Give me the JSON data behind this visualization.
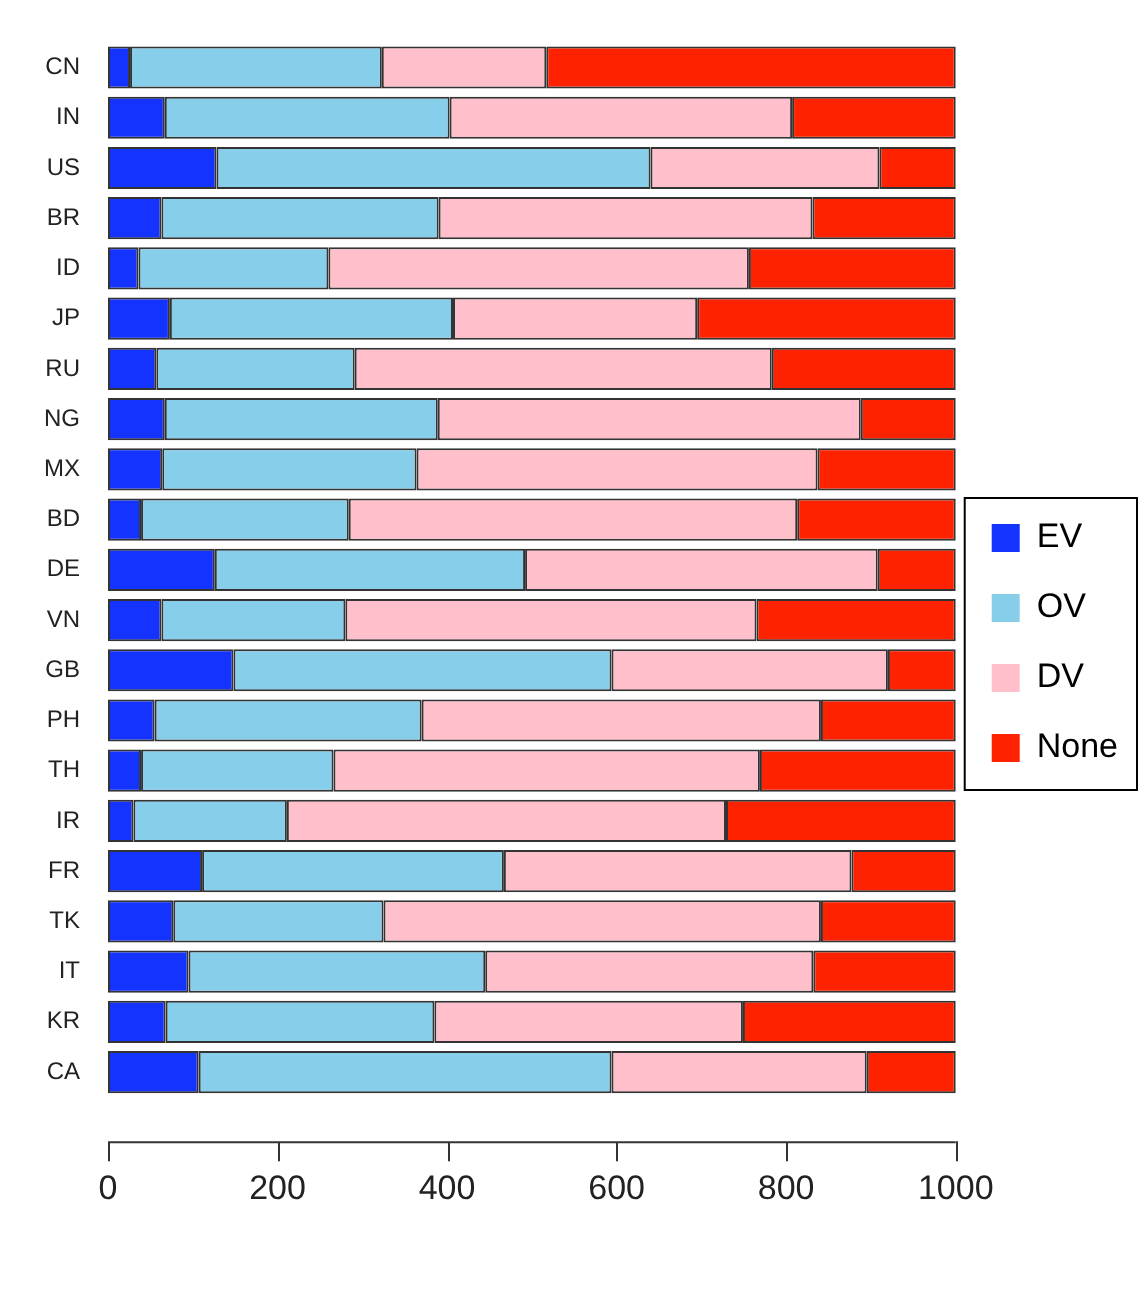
{
  "chart_data": {
    "type": "bar",
    "orientation": "horizontal",
    "stacked": true,
    "categories": [
      "CN",
      "IN",
      "US",
      "BR",
      "ID",
      "JP",
      "RU",
      "NG",
      "MX",
      "BD",
      "DE",
      "VN",
      "GB",
      "PH",
      "TH",
      "IR",
      "FR",
      "TK",
      "IT",
      "KR",
      "CA"
    ],
    "series": [
      {
        "name": "EV",
        "color": "#1433ff",
        "values": [
          26,
          67,
          128,
          63,
          36,
          73,
          57,
          67,
          64,
          39,
          126,
          63,
          148,
          55,
          39,
          30,
          111,
          77,
          95,
          68,
          107
        ]
      },
      {
        "name": "OV",
        "color": "#87ceeb",
        "values": [
          297,
          336,
          512,
          327,
          224,
          334,
          234,
          322,
          300,
          245,
          366,
          217,
          446,
          315,
          227,
          181,
          356,
          248,
          350,
          317,
          487
        ]
      },
      {
        "name": "DV",
        "color": "#ffc0cb",
        "values": [
          194,
          404,
          270,
          441,
          496,
          288,
          492,
          499,
          473,
          529,
          416,
          485,
          326,
          471,
          503,
          518,
          410,
          516,
          387,
          364,
          301
        ]
      },
      {
        "name": "None",
        "color": "#ff2200",
        "values": [
          483,
          193,
          90,
          169,
          244,
          305,
          217,
          112,
          163,
          187,
          92,
          235,
          80,
          159,
          231,
          271,
          123,
          159,
          168,
          251,
          105
        ]
      }
    ],
    "xlim": [
      0,
      1000
    ],
    "xticks": [
      0,
      200,
      400,
      600,
      800,
      1000
    ],
    "grid": false,
    "legend": "right"
  }
}
